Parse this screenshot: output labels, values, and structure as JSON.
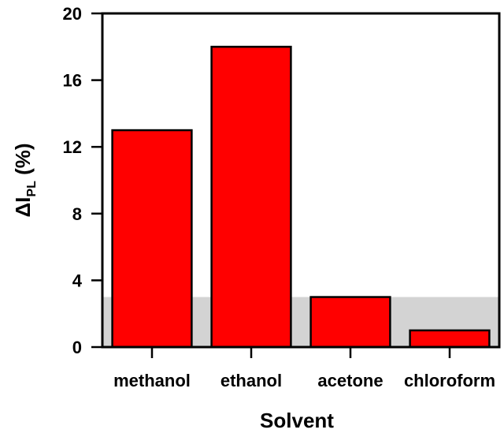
{
  "chart_data": {
    "type": "bar",
    "categories": [
      "methanol",
      "ethanol",
      "acetone",
      "chloroform"
    ],
    "values": [
      13,
      18,
      3,
      1
    ],
    "ylim": [
      0,
      20
    ],
    "yticks": [
      0,
      4,
      8,
      12,
      16,
      20
    ],
    "xlabel": "Solvent",
    "ylabel": {
      "prefix": "ΔI",
      "subscript": "PL",
      "suffix": " (%)"
    },
    "threshold_band": {
      "from": 0,
      "to": 3
    },
    "grid": false,
    "colors": {
      "bar_fill": "#ff0000",
      "bar_stroke": "#000000",
      "band_fill": "#d3d3d3",
      "axis": "#000000"
    }
  }
}
